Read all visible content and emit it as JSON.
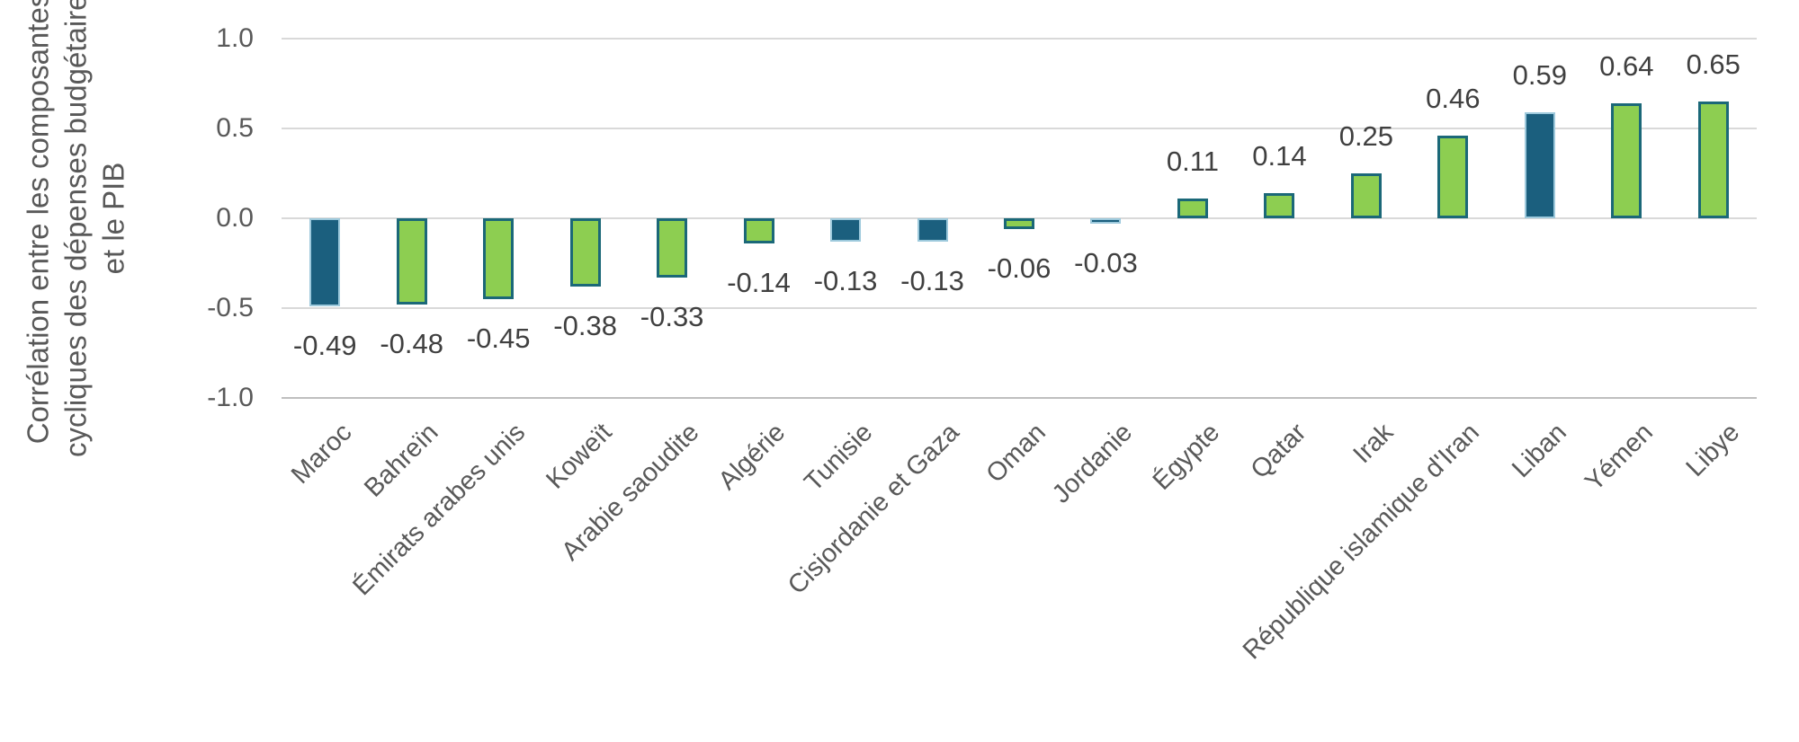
{
  "chart_data": {
    "type": "bar",
    "title": "",
    "xlabel": "",
    "ylabel": "Corrélation entre les composantes\ncycliques des dépenses budgétaires\net le PIB",
    "categories": [
      "Maroc",
      "Bahreïn",
      "Émirats arabes unis",
      "Koweït",
      "Arabie saoudite",
      "Algérie",
      "Tunisie",
      "Cisjordanie et Gaza",
      "Oman",
      "Jordanie",
      "Égypte",
      "Qatar",
      "Irak",
      "République islamique d'Iran",
      "Liban",
      "Yémen",
      "Libye"
    ],
    "values": [
      -0.49,
      -0.48,
      -0.45,
      -0.38,
      -0.33,
      -0.14,
      -0.13,
      -0.13,
      -0.06,
      -0.03,
      0.11,
      0.14,
      0.25,
      0.46,
      0.59,
      0.64,
      0.65
    ],
    "value_labels": [
      "-0.49",
      "-0.48",
      "-0.45",
      "-0.38",
      "-0.33",
      "-0.14",
      "-0.13",
      "-0.13",
      "-0.06",
      "-0.03",
      "0.11",
      "0.14",
      "0.25",
      "0.46",
      "0.59",
      "0.64",
      "0.65"
    ],
    "bar_colors": [
      "blue",
      "green",
      "green",
      "green",
      "green",
      "green",
      "blue",
      "blue",
      "green",
      "blue",
      "green",
      "green",
      "green",
      "green",
      "blue",
      "green",
      "green"
    ],
    "ylim": [
      -1.0,
      1.0
    ],
    "yticks": [
      1.0,
      0.5,
      0.0,
      -0.5,
      -1.0
    ],
    "ytick_labels": [
      "1.0",
      "0.5",
      "0.0",
      "-0.5",
      "-1.0"
    ],
    "grid": "horizontal",
    "legend": "none",
    "colors": {
      "bar_green_fill": "#8DCE51",
      "bar_green_border": "#1B6878",
      "bar_blue_fill": "#1B5F7E",
      "bar_blue_border": "#9DC9DC",
      "gridline": "#D9D9D9",
      "axis_line": "#BFBFBF",
      "value_label_text": "#404040",
      "axis_text": "#595959"
    }
  }
}
